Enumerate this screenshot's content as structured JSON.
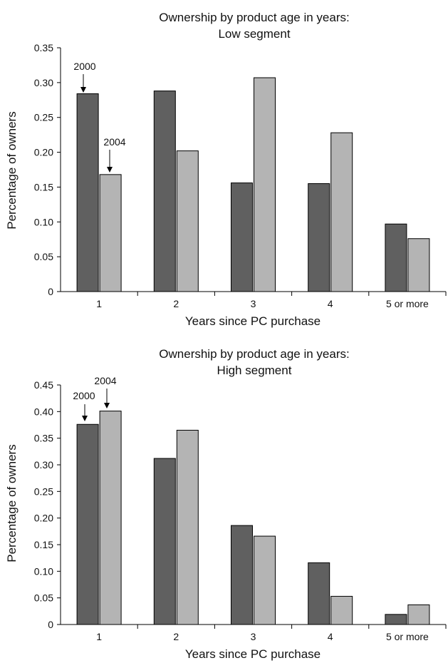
{
  "chart_data": [
    {
      "type": "bar",
      "title": "Ownership by product age in years:",
      "subtitle": "Low segment",
      "xlabel": "Years since PC purchase",
      "ylabel": "Percentage of owners",
      "categories": [
        "1",
        "2",
        "3",
        "4",
        "5 or more"
      ],
      "ylim": [
        0,
        0.35
      ],
      "yticks": [
        "0",
        "0.05",
        "0.10",
        "0.15",
        "0.20",
        "0.25",
        "0.30",
        "0.35"
      ],
      "series": [
        {
          "name": "2000",
          "color": "#606060",
          "values": [
            0.284,
            0.288,
            0.156,
            0.155,
            0.097
          ]
        },
        {
          "name": "2004",
          "color": "#b4b4b4",
          "values": [
            0.168,
            0.202,
            0.307,
            0.228,
            0.076
          ]
        }
      ],
      "legend": "annotation arrows over first category",
      "grid": false
    },
    {
      "type": "bar",
      "title": "Ownership by product age in years:",
      "subtitle": "High segment",
      "xlabel": "Years since PC purchase",
      "ylabel": "Percentage of owners",
      "categories": [
        "1",
        "2",
        "3",
        "4",
        "5 or more"
      ],
      "ylim": [
        0,
        0.45
      ],
      "yticks": [
        "0",
        "0.05",
        "0.10",
        "0.15",
        "0.20",
        "0.25",
        "0.30",
        "0.35",
        "0.40",
        "0.45"
      ],
      "series": [
        {
          "name": "2000",
          "color": "#606060",
          "values": [
            0.376,
            0.312,
            0.186,
            0.116,
            0.019
          ]
        },
        {
          "name": "2004",
          "color": "#b4b4b4",
          "values": [
            0.401,
            0.365,
            0.166,
            0.053,
            0.037
          ]
        }
      ],
      "legend": "annotation arrows over first category",
      "grid": false
    }
  ]
}
